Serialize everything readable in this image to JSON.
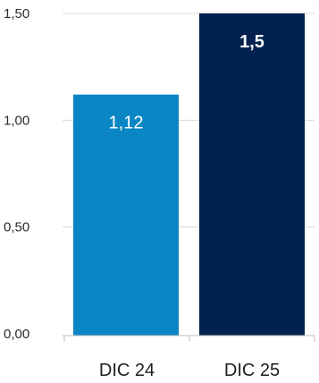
{
  "chart_data": {
    "type": "bar",
    "categories": [
      "DIC 24",
      "DIC 25"
    ],
    "values": [
      1.12,
      1.5
    ],
    "data_labels": [
      "1,12",
      "1,5"
    ],
    "title": "",
    "xlabel": "",
    "ylabel": "",
    "ylim": [
      0,
      1.5
    ],
    "yticks": [
      0,
      0.5,
      1.0,
      1.5
    ],
    "ytick_labels": [
      "0,00",
      "0,50",
      "1,00",
      "1,50"
    ],
    "grid": true,
    "legend": "none",
    "bar_colors": [
      "#0a86c4",
      "#02214f"
    ],
    "data_label_colors": [
      "#ffffff",
      "#ffffff"
    ],
    "data_label_bold": [
      false,
      true
    ],
    "grid_color": "#d9d9d9",
    "axis_color": "#bfbfbf"
  }
}
